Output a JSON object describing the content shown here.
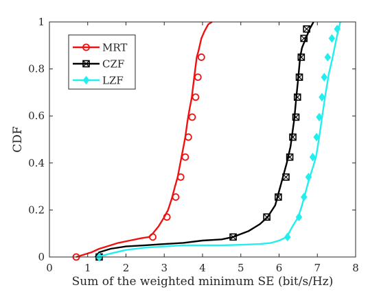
{
  "chart_data": {
    "type": "line",
    "xlabel": "Sum of the weighted minimum SE (bit/s/Hz)",
    "ylabel": "CDF",
    "xlim": [
      0,
      8
    ],
    "ylim": [
      0,
      1
    ],
    "x_ticks": [
      "0",
      "1",
      "2",
      "3",
      "4",
      "5",
      "6",
      "7",
      "8"
    ],
    "y_ticks": [
      "0",
      "0.2",
      "0.4",
      "0.6",
      "0.8",
      "1"
    ],
    "grid": false,
    "legend_position": "top-left",
    "series": [
      {
        "name": "MRT",
        "color": "#ee1111",
        "marker": "circle",
        "x": [
          0.7,
          1.1,
          1.3,
          1.5,
          1.8,
          2.1,
          2.4,
          2.6,
          2.7,
          2.85,
          3.0,
          3.1,
          3.2,
          3.28,
          3.35,
          3.42,
          3.48,
          3.55,
          3.6,
          3.65,
          3.72,
          3.78,
          3.85,
          3.9,
          3.97,
          4.05,
          4.15,
          4.25
        ],
        "y": [
          0.0,
          0.02,
          0.035,
          0.045,
          0.06,
          0.07,
          0.08,
          0.085,
          0.1,
          0.13,
          0.17,
          0.2,
          0.25,
          0.3,
          0.34,
          0.4,
          0.45,
          0.51,
          0.57,
          0.62,
          0.68,
          0.76,
          0.85,
          0.88,
          0.93,
          0.96,
          0.99,
          1.0
        ],
        "marker_x": [
          0.7,
          2.7,
          3.07,
          3.3,
          3.43,
          3.55,
          3.63,
          3.73,
          3.82,
          3.88,
          3.97
        ],
        "marker_y": [
          0.0,
          0.085,
          0.17,
          0.255,
          0.34,
          0.425,
          0.51,
          0.595,
          0.68,
          0.765,
          0.85
        ]
      },
      {
        "name": "CZF",
        "color": "#000000",
        "marker": "square-cross",
        "x": [
          1.2,
          1.3,
          1.6,
          2.0,
          2.5,
          3.0,
          3.5,
          4.0,
          4.5,
          4.8,
          5.2,
          5.5,
          5.7,
          5.9,
          6.0,
          6.1,
          6.2,
          6.3,
          6.35,
          6.4,
          6.45,
          6.5,
          6.55,
          6.6,
          6.7,
          6.8,
          6.9
        ],
        "y": [
          0.0,
          0.02,
          0.035,
          0.045,
          0.05,
          0.055,
          0.06,
          0.07,
          0.075,
          0.085,
          0.11,
          0.14,
          0.17,
          0.22,
          0.28,
          0.34,
          0.4,
          0.47,
          0.53,
          0.59,
          0.68,
          0.76,
          0.85,
          0.89,
          0.93,
          0.97,
          1.0
        ],
        "marker_x": [
          1.3,
          4.8,
          5.68,
          5.98,
          6.18,
          6.28,
          6.36,
          6.44,
          6.48,
          6.53,
          6.58,
          6.65,
          6.72
        ],
        "marker_y": [
          0.0,
          0.085,
          0.17,
          0.255,
          0.34,
          0.425,
          0.51,
          0.595,
          0.68,
          0.765,
          0.85,
          0.93,
          0.97
        ]
      },
      {
        "name": "LZF",
        "color": "#22eeee",
        "marker": "diamond",
        "x": [
          1.25,
          1.6,
          2.0,
          2.5,
          3.0,
          3.5,
          4.0,
          4.5,
          5.0,
          5.5,
          5.8,
          6.0,
          6.2,
          6.35,
          6.5,
          6.6,
          6.7,
          6.8,
          6.9,
          6.97,
          7.05,
          7.12,
          7.2,
          7.3,
          7.4,
          7.5,
          7.6
        ],
        "y": [
          0.0,
          0.015,
          0.03,
          0.04,
          0.045,
          0.05,
          0.05,
          0.05,
          0.052,
          0.055,
          0.06,
          0.07,
          0.085,
          0.13,
          0.17,
          0.22,
          0.28,
          0.34,
          0.39,
          0.43,
          0.51,
          0.59,
          0.68,
          0.78,
          0.85,
          0.93,
          1.0
        ],
        "marker_x": [
          1.3,
          6.22,
          6.52,
          6.65,
          6.77,
          6.88,
          6.98,
          7.05,
          7.12,
          7.18,
          7.27,
          7.38,
          7.52
        ],
        "marker_y": [
          0.0,
          0.085,
          0.17,
          0.255,
          0.34,
          0.425,
          0.51,
          0.595,
          0.68,
          0.765,
          0.85,
          0.93,
          0.97
        ]
      }
    ]
  }
}
